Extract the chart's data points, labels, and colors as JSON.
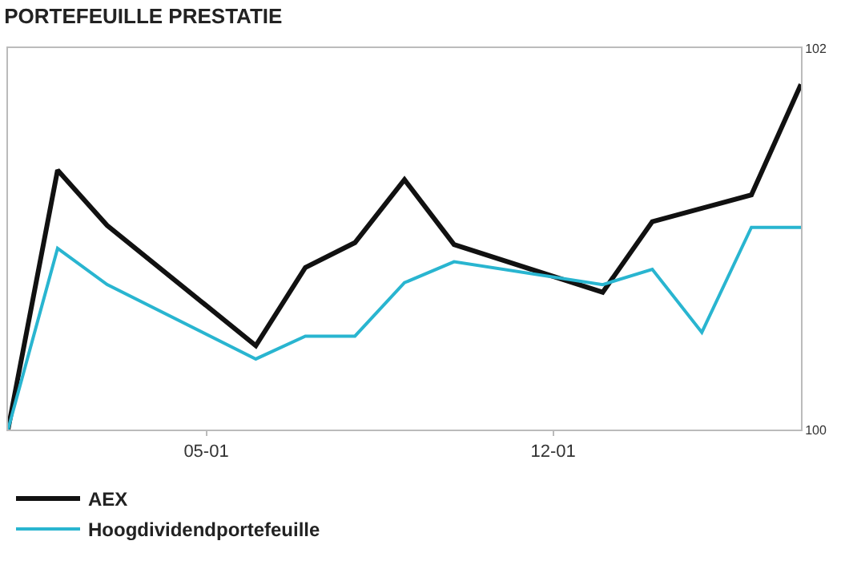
{
  "chart_data": {
    "type": "line",
    "title": "PORTEFEUILLE PRESTATIE",
    "x": [
      "--01-01",
      "--01-02",
      "--01-03",
      "--01-06",
      "--01-07",
      "--01-08",
      "--01-09",
      "--01-10",
      "--01-13",
      "--01-14",
      "--01-15",
      "--01-16",
      "--01-17"
    ],
    "xlim": [
      "--01-01",
      "--01-17"
    ],
    "xticks": [
      {
        "value": "--01-05",
        "label": "05-01"
      },
      {
        "value": "--01-12",
        "label": "12-01"
      }
    ],
    "ylim": [
      100,
      102
    ],
    "yticks": [
      100,
      102
    ],
    "series": [
      {
        "name": "AEX",
        "color": "#111111",
        "values": [
          100,
          101.36,
          101.07,
          100.44,
          100.85,
          100.98,
          101.31,
          100.97,
          100.72,
          101.09,
          101.16,
          101.23,
          101.81
        ]
      },
      {
        "name": "Hoogdividendportefeuille",
        "color": "#29b5d0",
        "values": [
          100,
          100.95,
          100.76,
          100.37,
          100.49,
          100.49,
          100.77,
          100.88,
          100.76,
          100.84,
          100.51,
          101.06,
          101.06
        ]
      }
    ],
    "grid": false,
    "legend": "bottom",
    "marker": "none",
    "line_style": "solid"
  }
}
